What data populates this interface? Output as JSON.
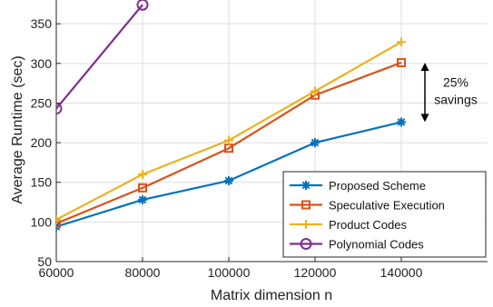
{
  "chart_data": {
    "type": "line",
    "xlabel": "Matrix dimension n",
    "ylabel": "Average Runtime (sec)",
    "xlim": [
      60000,
      160000
    ],
    "ylim": [
      50,
      380
    ],
    "xticks": [
      60000,
      80000,
      100000,
      120000,
      140000
    ],
    "yticks": [
      50,
      100,
      150,
      200,
      250,
      300,
      350
    ],
    "grid": true,
    "legend_position": "bottom-right",
    "series": [
      {
        "name": "Proposed Scheme",
        "color": "#0072BD",
        "marker": "asterisk",
        "x": [
          60000,
          80000,
          100000,
          120000,
          140000
        ],
        "y": [
          94,
          128,
          152,
          200,
          226
        ]
      },
      {
        "name": "Speculative Execution",
        "color": "#D95319",
        "marker": "square",
        "x": [
          60000,
          80000,
          100000,
          120000,
          140000
        ],
        "y": [
          98,
          143,
          193,
          260,
          301
        ]
      },
      {
        "name": "Product Codes",
        "color": "#EDB120",
        "marker": "plus",
        "x": [
          60000,
          80000,
          100000,
          120000,
          140000
        ],
        "y": [
          103,
          160,
          203,
          265,
          327
        ]
      },
      {
        "name": "Polynomial Codes",
        "color": "#7E2F8E",
        "marker": "circle",
        "x": [
          60000,
          80000
        ],
        "y": [
          243,
          374
        ]
      }
    ],
    "annotations": [
      {
        "lines": [
          "25%",
          "savings"
        ],
        "arrow_x": 140000,
        "arrow_y": [
          226,
          301
        ]
      }
    ]
  }
}
